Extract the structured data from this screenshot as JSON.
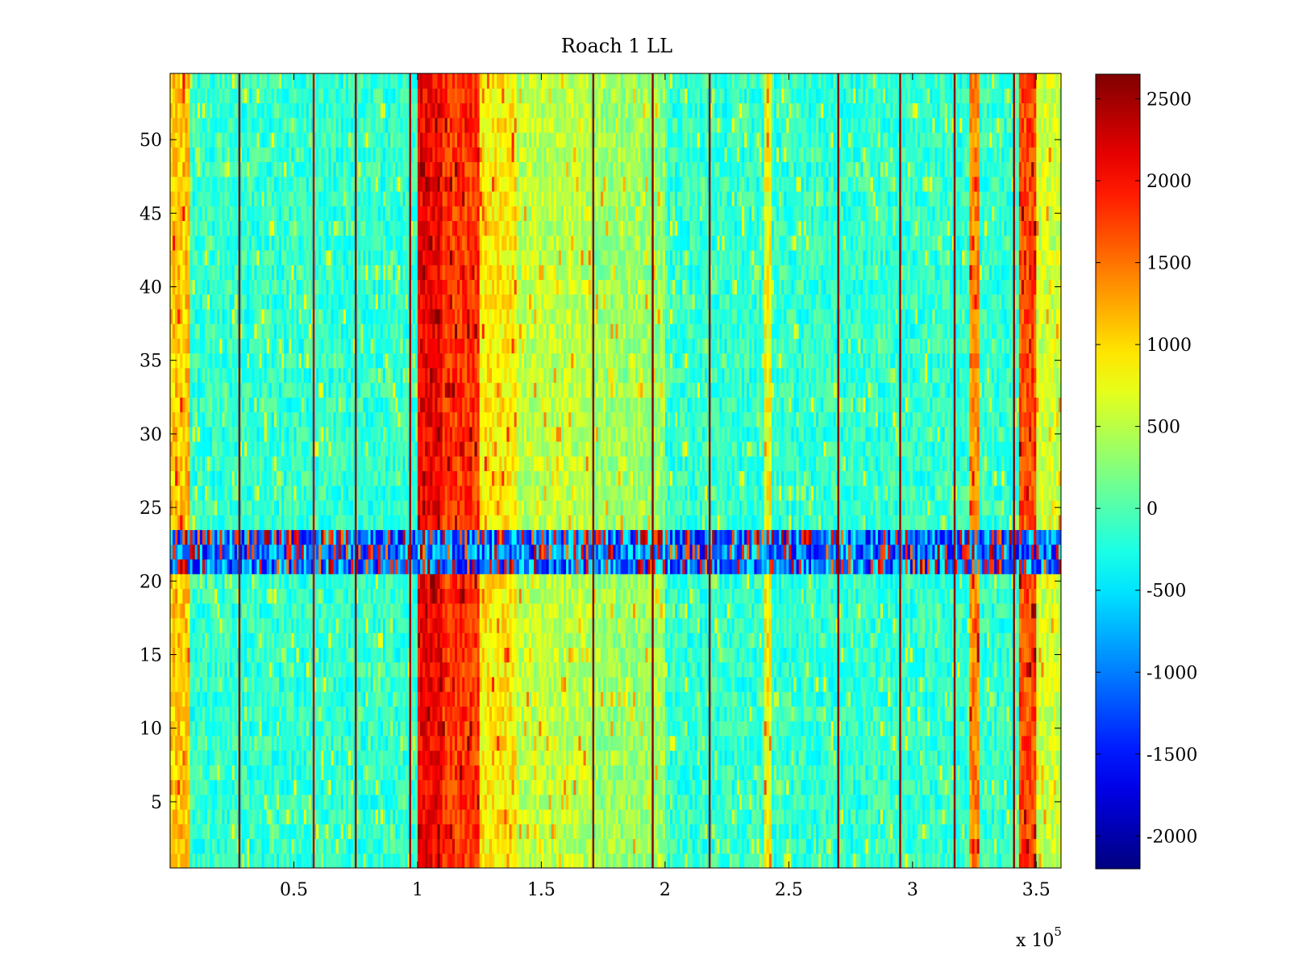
{
  "chart_data": [
    {
      "type": "heatmap",
      "title": "Roach 1 LL",
      "xlabel": "",
      "ylabel": "",
      "x_exponent_label": "x 10",
      "x_exponent": "5",
      "xlim": [
        0,
        360000
      ],
      "ylim": [
        0.5,
        54.5
      ],
      "n_rows": 54,
      "x_ticks": [
        50000,
        100000,
        150000,
        200000,
        250000,
        300000,
        350000
      ],
      "x_tick_labels": [
        "0.5",
        "1",
        "1.5",
        "2",
        "2.5",
        "3",
        "3.5"
      ],
      "y_ticks": [
        5,
        10,
        15,
        20,
        25,
        30,
        35,
        40,
        45,
        50
      ],
      "y_tick_labels": [
        "5",
        "10",
        "15",
        "20",
        "25",
        "30",
        "35",
        "40",
        "45",
        "50"
      ],
      "colormap": "jet",
      "color_range": [
        -2200,
        2650
      ],
      "baseline_value": -150,
      "anomalous_rows": [
        21,
        22,
        23
      ],
      "anomalous_row_value": -1000,
      "features": [
        {
          "x_start": 0,
          "x_end": 8000,
          "value": 1100
        },
        {
          "x_start": 100000,
          "x_end": 110000,
          "value": 2100
        },
        {
          "x_start": 110000,
          "x_end": 125000,
          "value": 1800
        },
        {
          "x_start": 125000,
          "x_end": 140000,
          "value": 900
        },
        {
          "x_start": 140000,
          "x_end": 170000,
          "value": 500
        },
        {
          "x_start": 170000,
          "x_end": 200000,
          "value": 350
        },
        {
          "x_start": 240000,
          "x_end": 243000,
          "value": 800
        },
        {
          "x_start": 323000,
          "x_end": 327000,
          "value": 1400
        },
        {
          "x_start": 343000,
          "x_end": 350000,
          "value": 1700
        },
        {
          "x_start": 350000,
          "x_end": 360000,
          "value": 600
        }
      ],
      "spikes": [
        {
          "x": 28000,
          "value": 2600
        },
        {
          "x": 58000,
          "value": 2400
        },
        {
          "x": 75000,
          "value": 2600
        },
        {
          "x": 97000,
          "value": 2500
        },
        {
          "x": 171000,
          "value": 2600
        },
        {
          "x": 195000,
          "value": 2600
        },
        {
          "x": 218000,
          "value": 2600
        },
        {
          "x": 270000,
          "value": 2600
        },
        {
          "x": 295000,
          "value": 2500
        },
        {
          "x": 317000,
          "value": 2600
        },
        {
          "x": 341000,
          "value": 2600
        }
      ],
      "colorbar": {
        "ticks": [
          2500,
          2000,
          1500,
          1000,
          500,
          0,
          -500,
          -1000,
          -1500,
          -2000
        ],
        "tick_labels": [
          "2500",
          "2000",
          "1500",
          "1000",
          "500",
          "0",
          "-500",
          "-1000",
          "-1500",
          "-2000"
        ]
      }
    }
  ]
}
